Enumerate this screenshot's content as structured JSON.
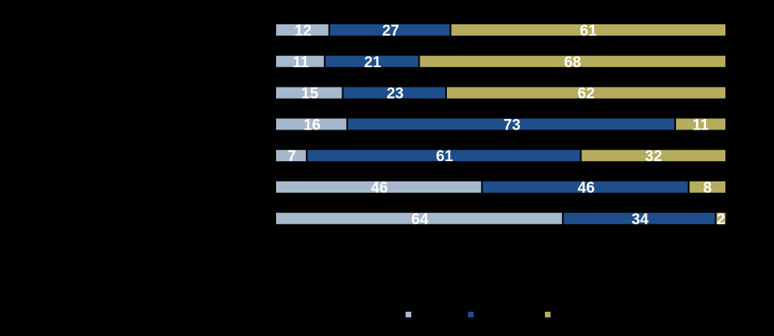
{
  "chart_data": {
    "type": "bar",
    "orientation": "horizontal",
    "stacked": true,
    "normalized_to": 100,
    "title": "",
    "xlabel": "",
    "ylabel": "",
    "categories": [
      "",
      "",
      "",
      "",
      "",
      "",
      ""
    ],
    "series": [
      {
        "color": "#a6b8cc",
        "values": [
          12,
          11,
          15,
          16,
          7,
          46,
          64
        ]
      },
      {
        "color": "#1f4e8c",
        "values": [
          27,
          21,
          23,
          73,
          61,
          46,
          34
        ]
      },
      {
        "color": "#b5ac5e",
        "values": [
          61,
          68,
          62,
          11,
          32,
          8,
          2
        ]
      }
    ],
    "xlim": [
      0,
      100
    ],
    "grid": false,
    "legend": {
      "placement": "bottom",
      "entries": [
        "",
        "",
        ""
      ]
    }
  }
}
